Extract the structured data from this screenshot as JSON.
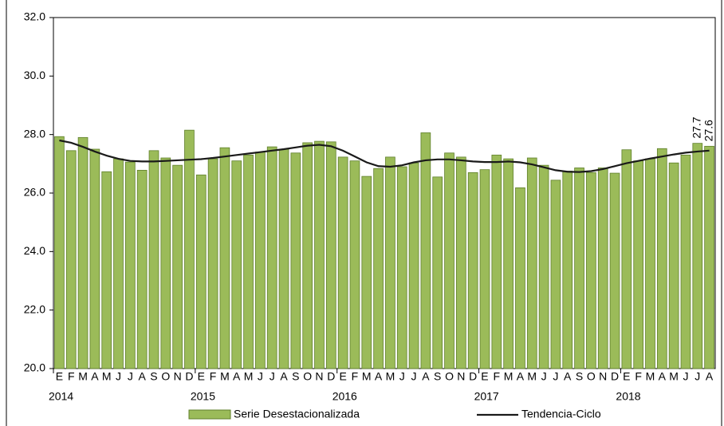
{
  "chart_data": {
    "type": "bar-line",
    "categories": [
      "E",
      "F",
      "M",
      "A",
      "M",
      "J",
      "J",
      "A",
      "S",
      "O",
      "N",
      "D",
      "E",
      "F",
      "M",
      "A",
      "M",
      "J",
      "J",
      "A",
      "S",
      "O",
      "N",
      "D",
      "E",
      "F",
      "M",
      "A",
      "M",
      "J",
      "J",
      "A",
      "S",
      "O",
      "N",
      "D",
      "E",
      "F",
      "M",
      "A",
      "M",
      "J",
      "J",
      "A",
      "S",
      "O",
      "N",
      "D",
      "E",
      "F",
      "M",
      "A",
      "M",
      "J",
      "J",
      "A"
    ],
    "years": [
      "2014",
      "2015",
      "2016",
      "2017",
      "2018"
    ],
    "series": [
      {
        "name": "Serie Desestacionalizada",
        "kind": "bar",
        "color": "#9bbb59",
        "values": [
          27.93,
          27.45,
          27.9,
          27.5,
          26.73,
          27.17,
          27.06,
          26.78,
          27.45,
          27.2,
          26.95,
          28.15,
          26.62,
          27.17,
          27.55,
          27.1,
          27.3,
          27.4,
          27.58,
          27.5,
          27.37,
          27.72,
          27.77,
          27.75,
          27.23,
          27.1,
          26.57,
          26.84,
          27.23,
          26.9,
          27.03,
          28.06,
          26.55,
          27.37,
          27.23,
          26.7,
          26.8,
          27.3,
          27.17,
          26.18,
          27.2,
          26.95,
          26.44,
          26.75,
          26.86,
          26.7,
          26.86,
          26.68,
          27.48,
          27.1,
          27.17,
          27.52,
          27.03,
          27.3,
          27.7,
          27.6
        ],
        "value_labels": [
          null,
          null,
          null,
          null,
          null,
          null,
          null,
          null,
          null,
          null,
          null,
          null,
          null,
          null,
          null,
          null,
          null,
          null,
          null,
          null,
          null,
          null,
          null,
          null,
          null,
          null,
          null,
          null,
          null,
          null,
          null,
          null,
          null,
          null,
          null,
          null,
          null,
          null,
          null,
          null,
          null,
          null,
          null,
          null,
          null,
          null,
          null,
          null,
          null,
          null,
          null,
          null,
          null,
          null,
          "27.7",
          "27.6"
        ]
      },
      {
        "name": "Tendencia-Ciclo",
        "kind": "line",
        "color": "#1a1a1a",
        "values": [
          27.8,
          27.72,
          27.58,
          27.42,
          27.28,
          27.17,
          27.1,
          27.08,
          27.08,
          27.1,
          27.12,
          27.14,
          27.16,
          27.2,
          27.25,
          27.3,
          27.35,
          27.4,
          27.45,
          27.5,
          27.56,
          27.62,
          27.65,
          27.6,
          27.45,
          27.25,
          27.05,
          26.92,
          26.9,
          26.95,
          27.05,
          27.12,
          27.15,
          27.15,
          27.12,
          27.08,
          27.06,
          27.06,
          27.08,
          27.05,
          26.98,
          26.88,
          26.78,
          26.73,
          26.72,
          26.75,
          26.82,
          26.92,
          27.02,
          27.1,
          27.18,
          27.25,
          27.32,
          27.38,
          27.42,
          27.45
        ]
      }
    ],
    "ylim": [
      20,
      32
    ],
    "yticks": [
      {
        "value": 20,
        "label": "20.0"
      },
      {
        "value": 22,
        "label": "22.0"
      },
      {
        "value": 24,
        "label": "24.0"
      },
      {
        "value": 26,
        "label": "26.0"
      },
      {
        "value": 28,
        "label": "28.0"
      },
      {
        "value": 30,
        "label": "30.0"
      },
      {
        "value": 32,
        "label": "32.0"
      }
    ],
    "legend": "bottom"
  }
}
